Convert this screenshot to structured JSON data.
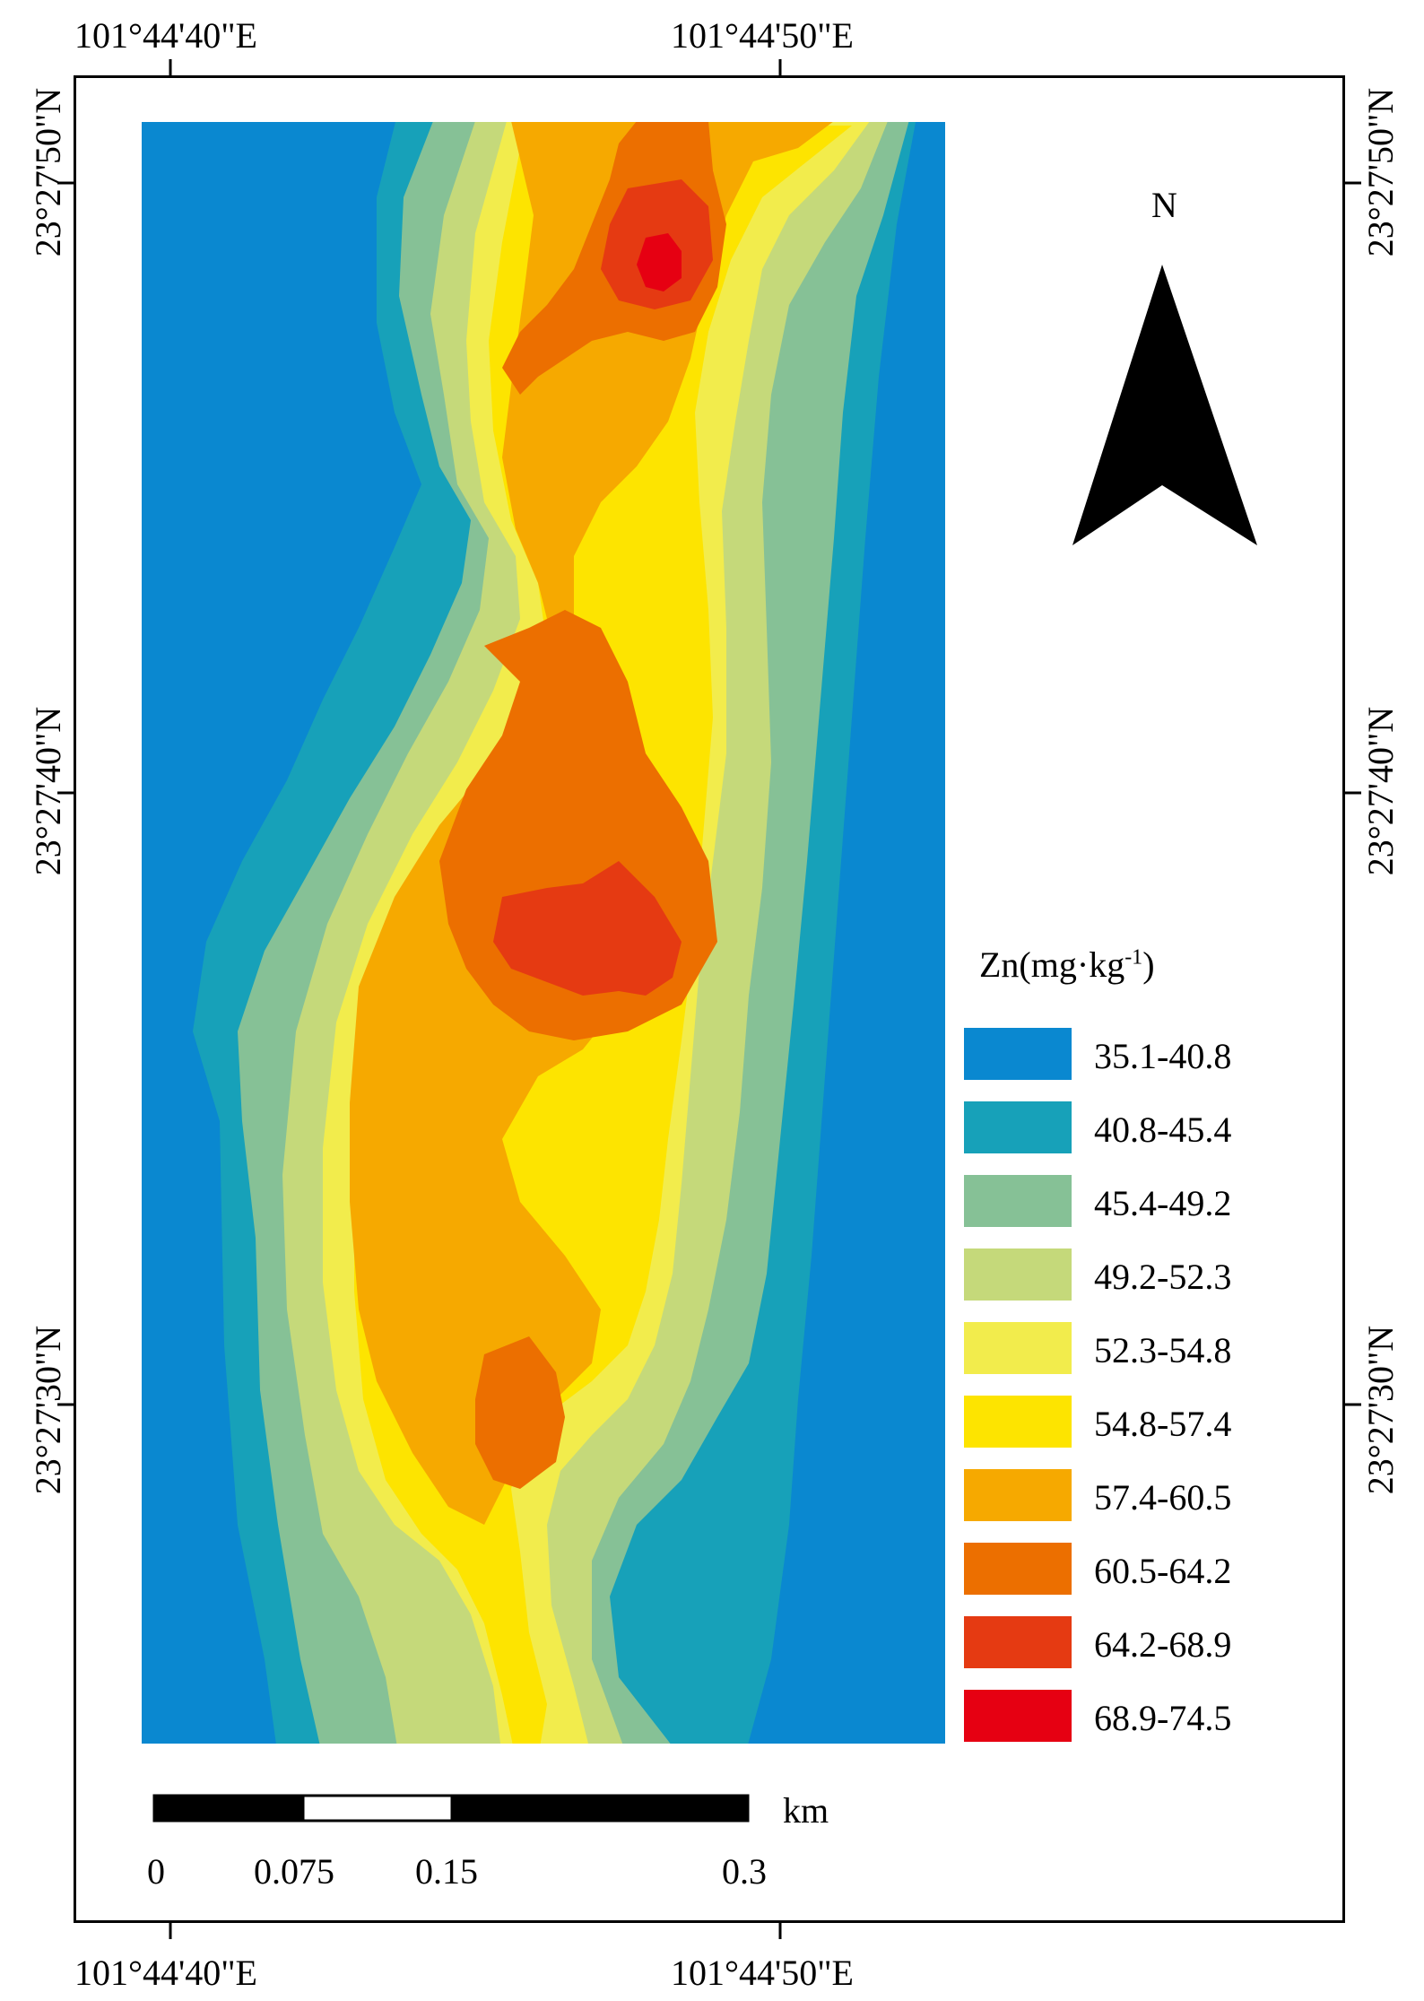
{
  "coordinates": {
    "top": [
      "101°44'40\"E",
      "101°44'50\"E"
    ],
    "bottom": [
      "101°44'40\"E",
      "101°44'50\"E"
    ],
    "left": [
      "23°27'50\"N",
      "23°27'40\"N",
      "23°27'30\"N"
    ],
    "right": [
      "23°27'50\"N",
      "23°27'40\"N",
      "23°27'30\"N"
    ]
  },
  "north_label": "N",
  "legend": {
    "title_main": "Zn(mg·kg",
    "title_sup": "-1",
    "title_end": ")",
    "classes": [
      {
        "label": "35.1-40.8",
        "color": "#0a88d0"
      },
      {
        "label": "40.8-45.4",
        "color": "#17a1b9"
      },
      {
        "label": "45.4-49.2",
        "color": "#86c196"
      },
      {
        "label": "49.2-52.3",
        "color": "#c5d97a"
      },
      {
        "label": "52.3-54.8",
        "color": "#f2ec4c"
      },
      {
        "label": "54.8-57.4",
        "color": "#fde400"
      },
      {
        "label": "57.4-60.5",
        "color": "#f6a900"
      },
      {
        "label": "60.5-64.2",
        "color": "#ec6f00"
      },
      {
        "label": "64.2-68.9",
        "color": "#e53a12"
      },
      {
        "label": "68.9-74.5",
        "color": "#e60012"
      }
    ]
  },
  "scale_bar": {
    "unit": "km",
    "ticks": [
      "0",
      "0.075",
      "0.15",
      "0.3"
    ]
  }
}
